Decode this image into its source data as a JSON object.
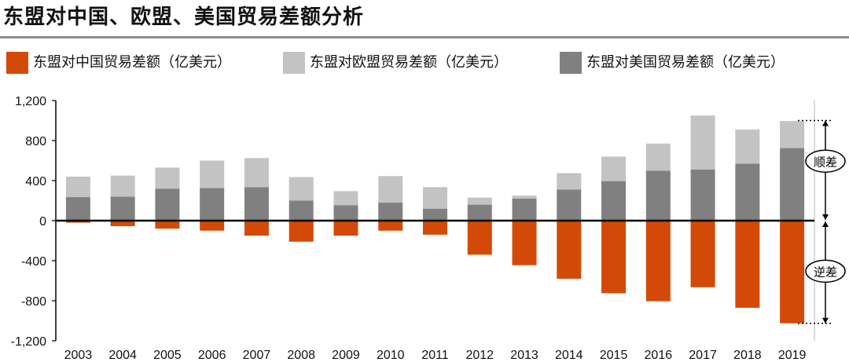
{
  "title": "东盟对中国、欧盟、美国贸易差额分析",
  "colors": {
    "china": "#d34a08",
    "eu": "#c3c3c3",
    "us": "#808080",
    "axis": "#000000",
    "rule": "#8c8c8c"
  },
  "annotations": {
    "surplus": "顺差",
    "deficit": "逆差"
  },
  "chart_data": {
    "type": "bar",
    "stacked": true,
    "title": "东盟对中国、欧盟、美国贸易差额分析",
    "xlabel": "",
    "ylabel": "",
    "ylim": [
      -1200,
      1200
    ],
    "yticks": [
      -1200,
      -800,
      -400,
      0,
      400,
      800,
      1200
    ],
    "ytick_labels": [
      "-1,200",
      "-800",
      "-400",
      "0",
      "400",
      "800",
      "1,200"
    ],
    "grid": false,
    "legend_position": "top",
    "categories": [
      "2003",
      "2004",
      "2005",
      "2006",
      "2007",
      "2008",
      "2009",
      "2010",
      "2011",
      "2012",
      "2013",
      "2014",
      "2015",
      "2016",
      "2017",
      "2018",
      "2019"
    ],
    "series": [
      {
        "name": "东盟对中国贸易差额（亿美元）",
        "values": [
          -20,
          -55,
          -80,
          -100,
          -150,
          -210,
          -150,
          -100,
          -140,
          -340,
          -445,
          -580,
          -725,
          -805,
          -665,
          -870,
          -1025
        ]
      },
      {
        "name": "东盟对欧盟贸易差额（亿美元）",
        "values": [
          205,
          210,
          210,
          275,
          290,
          235,
          140,
          265,
          215,
          70,
          30,
          165,
          245,
          270,
          540,
          340,
          270
        ]
      },
      {
        "name": "东盟对美国贸易差额（亿美元）",
        "values": [
          235,
          240,
          320,
          325,
          335,
          200,
          155,
          180,
          120,
          160,
          220,
          310,
          395,
          500,
          510,
          570,
          725
        ]
      }
    ],
    "annotations": [
      {
        "label": "顺差",
        "from": 0,
        "to": 1000
      },
      {
        "label": "逆差",
        "from": 0,
        "to": -1025
      }
    ]
  }
}
